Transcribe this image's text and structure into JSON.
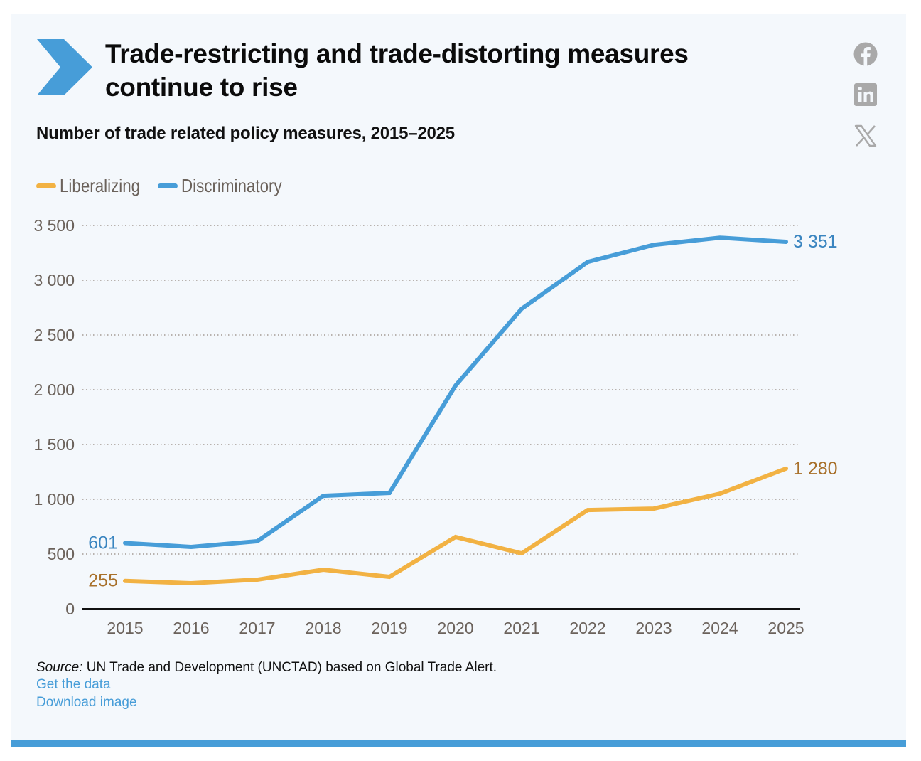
{
  "header": {
    "title_line1": "Trade-restricting and trade-distorting measures",
    "title_line2": "continue to rise",
    "subtitle": "Number of trade related policy measures, 2015–2025"
  },
  "social": [
    {
      "name": "facebook",
      "icon": "facebook-icon"
    },
    {
      "name": "linkedin",
      "icon": "linkedin-icon"
    },
    {
      "name": "x",
      "icon": "x-twitter-icon"
    }
  ],
  "legend": [
    {
      "label": "Liberalizing",
      "color": "#f2b243"
    },
    {
      "label": "Discriminatory",
      "color": "#479dd8"
    }
  ],
  "footer": {
    "source_label": "Source:",
    "source_text": " UN Trade and Development (UNCTAD) based on Global Trade Alert.",
    "get_data": "Get the data",
    "download_image": "Download image"
  },
  "colors": {
    "accent": "#479dd8",
    "liberalizing": "#f2b243",
    "liberalizing_label": "#a8702a",
    "discriminatory": "#479dd8",
    "discriminatory_label": "#3a85c0",
    "background": "#f4f8fc"
  },
  "chart_data": {
    "type": "line",
    "title": "Trade-restricting and trade-distorting measures continue to rise",
    "subtitle": "Number of trade related policy measures, 2015–2025",
    "xlabel": "",
    "ylabel": "",
    "x": [
      "2015",
      "2016",
      "2017",
      "2018",
      "2019",
      "2020",
      "2021",
      "2022",
      "2023",
      "2024",
      "2025"
    ],
    "ylim": [
      0,
      3500
    ],
    "yticks": [
      0,
      500,
      1000,
      1500,
      2000,
      2500,
      3000,
      3500
    ],
    "ytick_labels": [
      "0",
      "500",
      "1 000",
      "1 500",
      "2 000",
      "2 500",
      "3 000",
      "3 500"
    ],
    "grid": "horizontal-dotted",
    "legend_position": "top-left",
    "series": [
      {
        "name": "Liberalizing",
        "color": "#f2b243",
        "values": [
          255,
          234,
          266,
          357,
          292,
          656,
          506,
          902,
          915,
          1051,
          1280
        ],
        "start_label": "255",
        "end_label": "1 280"
      },
      {
        "name": "Discriminatory",
        "color": "#479dd8",
        "values": [
          601,
          565,
          617,
          1032,
          1058,
          2038,
          2739,
          3167,
          3323,
          3388,
          3351
        ],
        "start_label": "601",
        "end_label": "3 351"
      }
    ]
  }
}
